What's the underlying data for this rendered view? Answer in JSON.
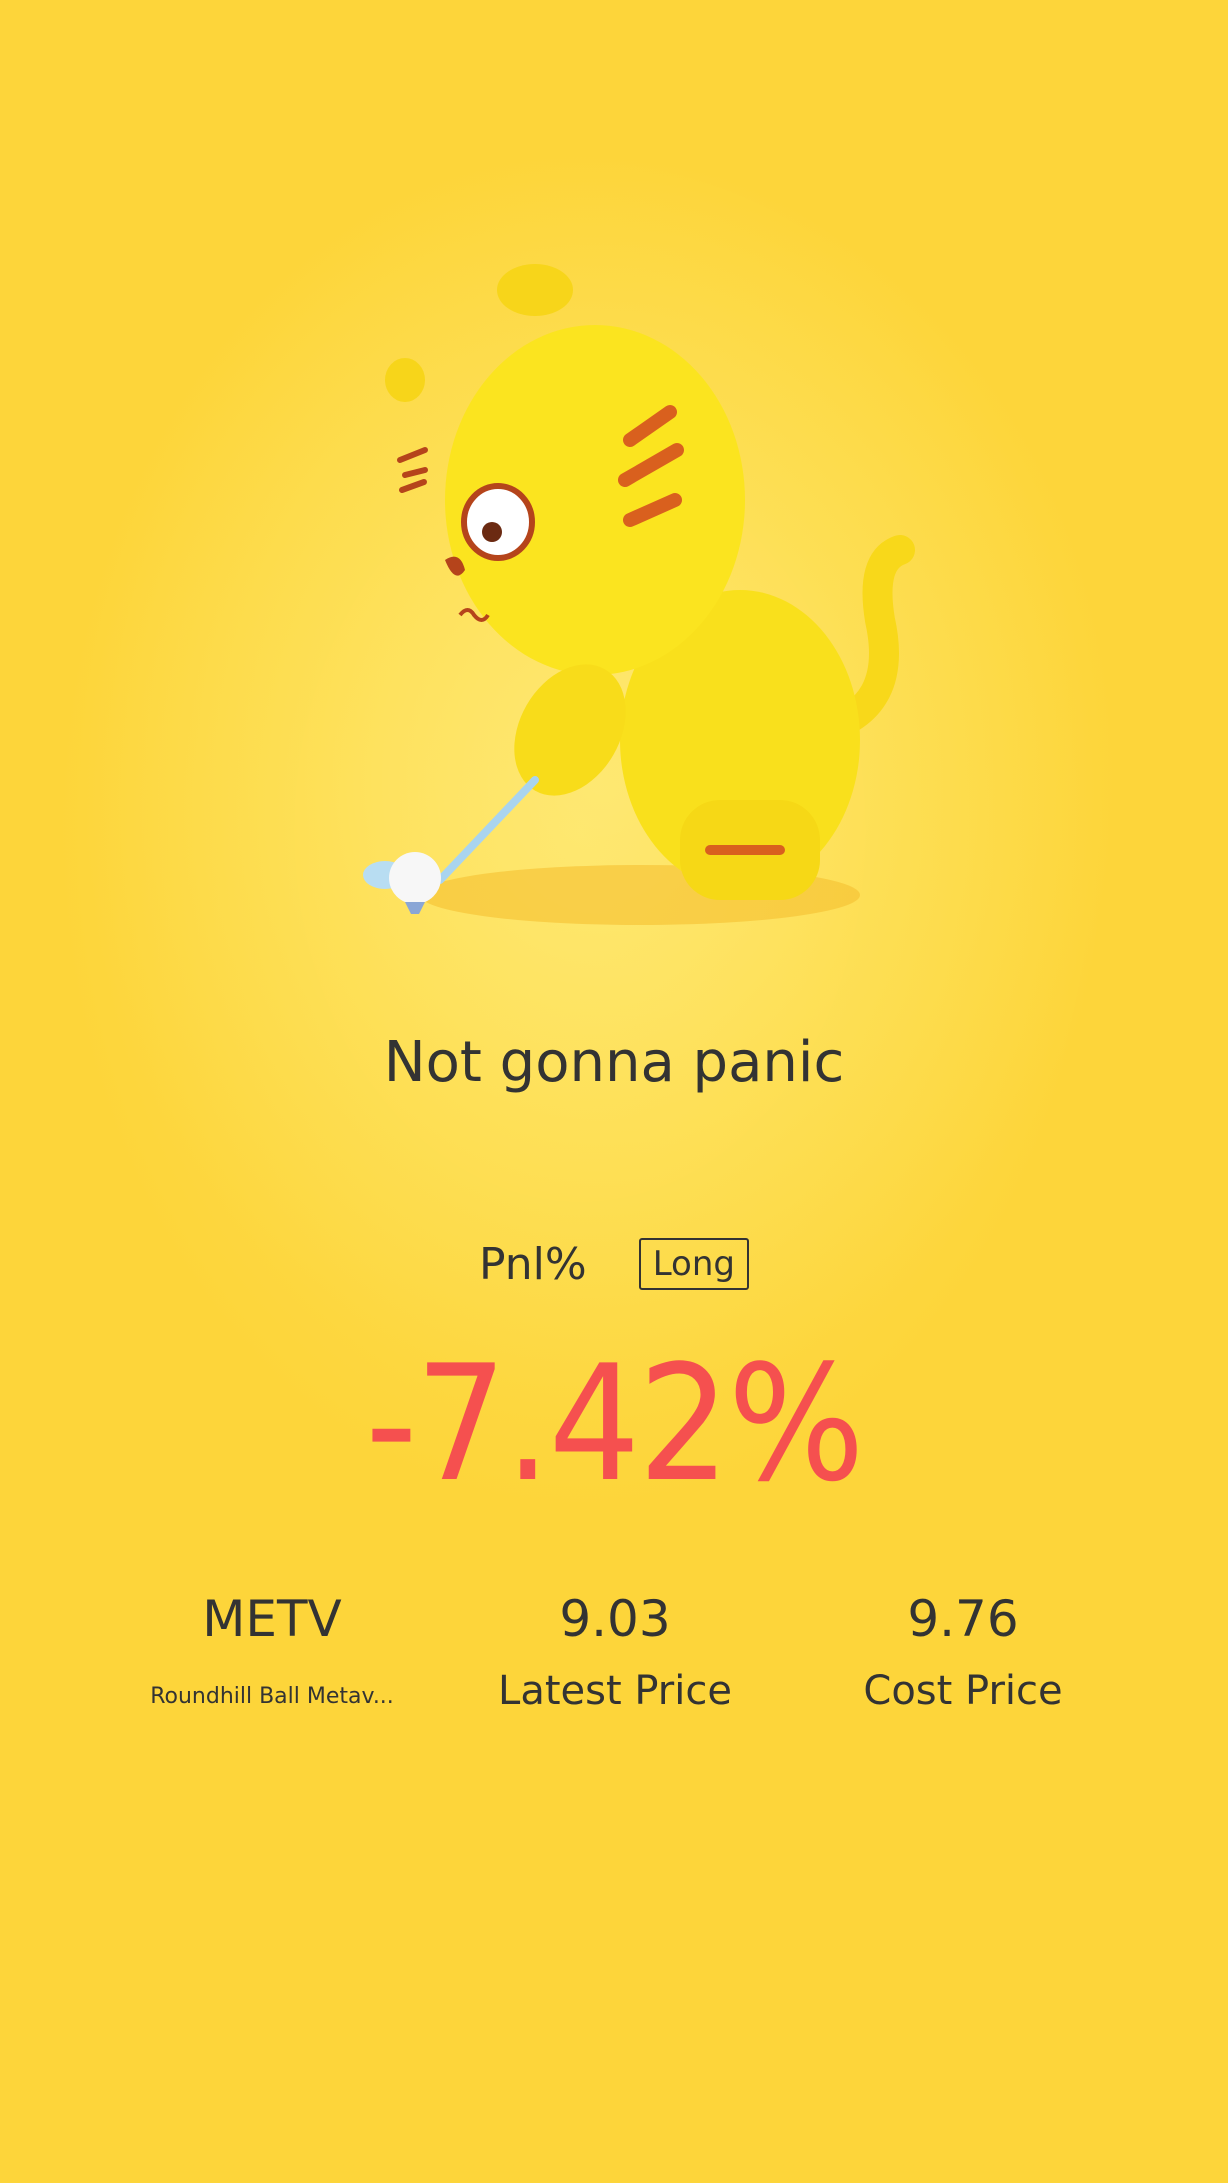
{
  "mood_title": "Not gonna panic",
  "pnl": {
    "label": "Pnl%",
    "direction_badge": "Long",
    "value": "-7.42%",
    "value_color": "#f5504f"
  },
  "stock": {
    "symbol": "METV",
    "name": "Roundhill Ball Metav..."
  },
  "latest": {
    "value": "9.03",
    "label": "Latest Price"
  },
  "cost": {
    "value": "9.76",
    "label": "Cost Price"
  },
  "mascot": "tiger-golfing-illustration",
  "background_color": "#fdd53a"
}
